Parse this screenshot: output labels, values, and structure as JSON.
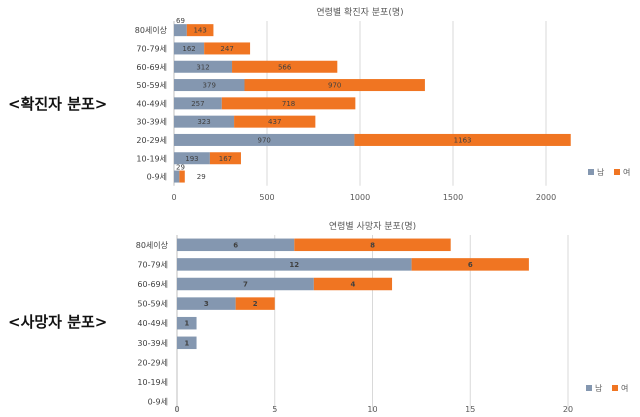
{
  "sections": {
    "cases_label": "<확진자 분포>",
    "deaths_label": "<사망자 분포>"
  },
  "colors": {
    "male": "#8497b0",
    "female": "#f07522",
    "grid": "#d9d9d9"
  },
  "chart_data": [
    {
      "type": "bar",
      "orientation": "horizontal",
      "stacked": true,
      "title": "연령별 확진자 분포(명)",
      "categories": [
        "80세이상",
        "70-79세",
        "60-69세",
        "50-59세",
        "40-49세",
        "30-39세",
        "20-29세",
        "10-19세",
        "0-9세"
      ],
      "series": [
        {
          "name": "남",
          "values": [
            69,
            162,
            312,
            379,
            257,
            323,
            970,
            193,
            29
          ]
        },
        {
          "name": "여",
          "values": [
            143,
            247,
            566,
            970,
            718,
            437,
            1163,
            167,
            29
          ]
        }
      ],
      "xlim": [
        0,
        2000
      ],
      "xticks": [
        0,
        500,
        1000,
        1500,
        2000
      ],
      "grid": true,
      "legend_position": "bottom-right"
    },
    {
      "type": "bar",
      "orientation": "horizontal",
      "stacked": true,
      "title": "연령별 사망자 분포(명)",
      "categories": [
        "80세이상",
        "70-79세",
        "60-69세",
        "50-59세",
        "40-49세",
        "30-39세",
        "20-29세",
        "10-19세",
        "0-9세"
      ],
      "series": [
        {
          "name": "남",
          "values": [
            6,
            12,
            7,
            3,
            1,
            1,
            0,
            0,
            0
          ]
        },
        {
          "name": "여",
          "values": [
            8,
            6,
            4,
            2,
            0,
            0,
            0,
            0,
            0
          ]
        }
      ],
      "xlim": [
        0,
        20
      ],
      "xticks": [
        0,
        5,
        10,
        15,
        20
      ],
      "grid": true,
      "legend_position": "bottom-right"
    }
  ]
}
